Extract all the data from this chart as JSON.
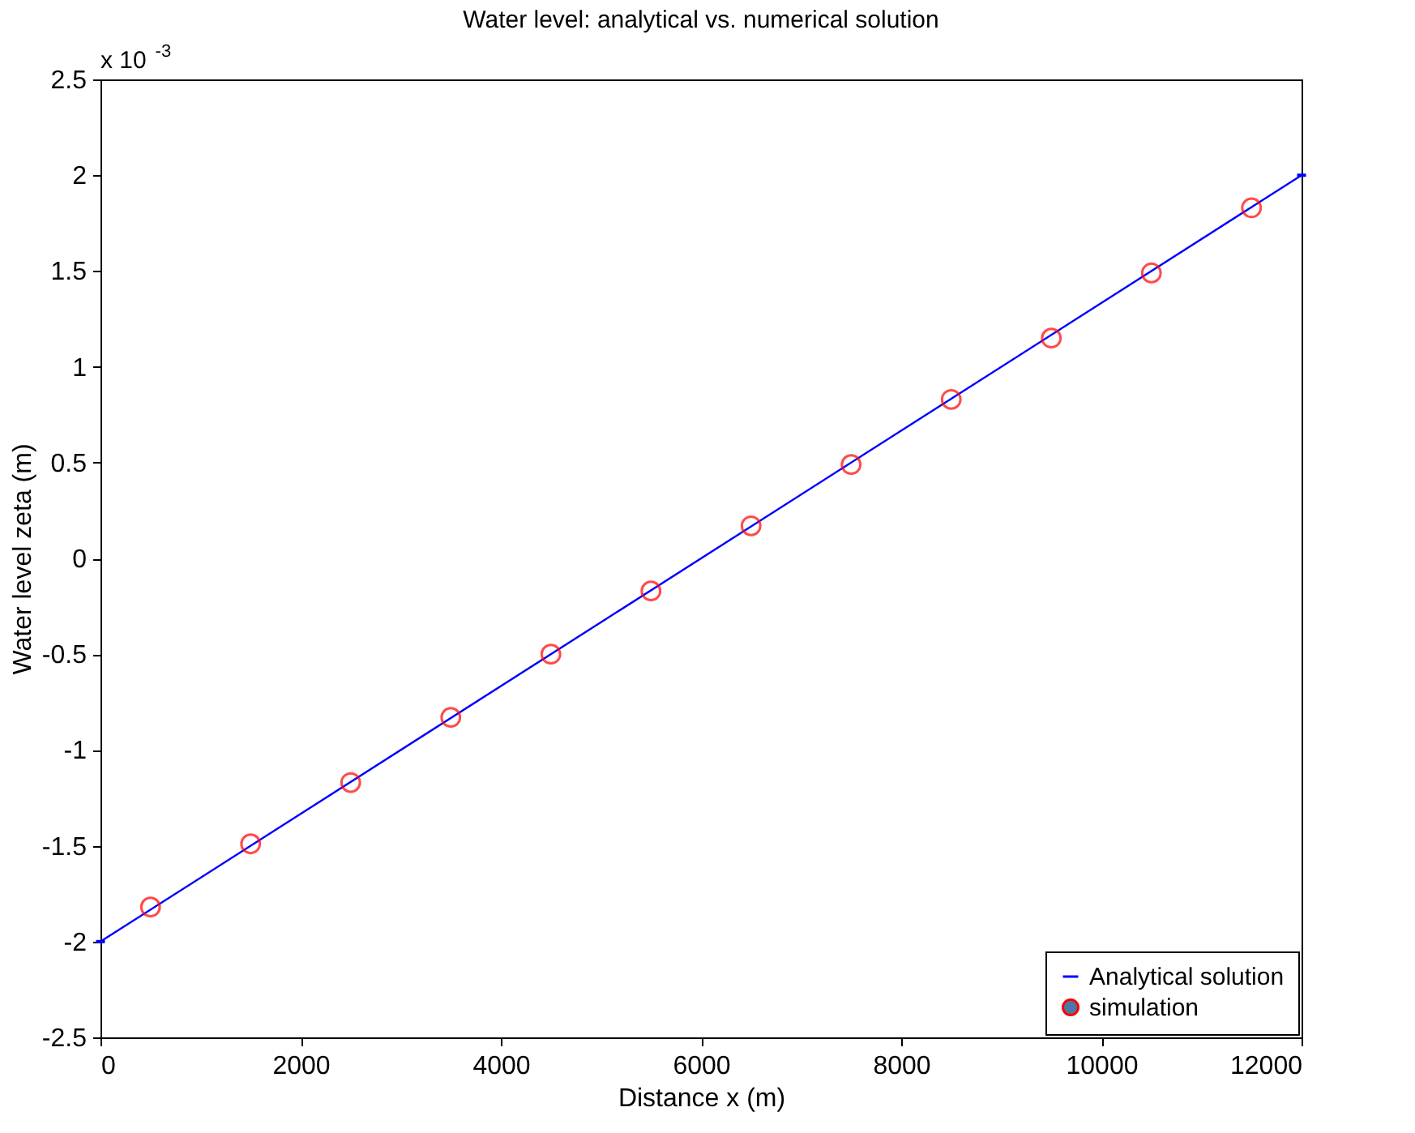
{
  "chart_data": {
    "type": "scatter",
    "title": "Water level: analytical vs. numerical solution",
    "xlabel": "Distance x (m)",
    "ylabel": "Water level zeta (m)",
    "annotations": [
      "x 10$^{-3}$"
    ],
    "series": [
      {
        "name": "Analytical solution",
        "type": "line",
        "color": "#0000ff",
        "marker": "none",
        "line_style": "solid",
        "x": [
          0,
          12000
        ],
        "values": [
          -2,
          2
        ]
      },
      {
        "name": "simulation",
        "color": "#ff0000",
        "marker": "circle",
        "x": [
          500,
          1500,
          2500,
          3500,
          4500,
          5500,
          6500,
          7500,
          8500,
          9500,
          10500,
          11500
        ],
        "values": [
          -1.82,
          -1.49,
          -1.17,
          -0.83,
          -0.5,
          -0.17,
          0.17,
          0.49,
          0.83,
          1.15,
          1.49,
          1.83
        ]
      }
    ],
    "xlim": [
      0,
      12000
    ],
    "xticks": [
      0,
      2000,
      4000,
      6000,
      8000,
      10000,
      12000
    ],
    "ylim": [
      -2.5,
      2.5
    ],
    "yticks": [
      -2.5,
      -2,
      -1.5,
      -1,
      -0.5,
      0,
      0.5,
      1,
      1.5,
      2,
      2.5
    ],
    "grid": false,
    "legend": "bottom right"
  }
}
